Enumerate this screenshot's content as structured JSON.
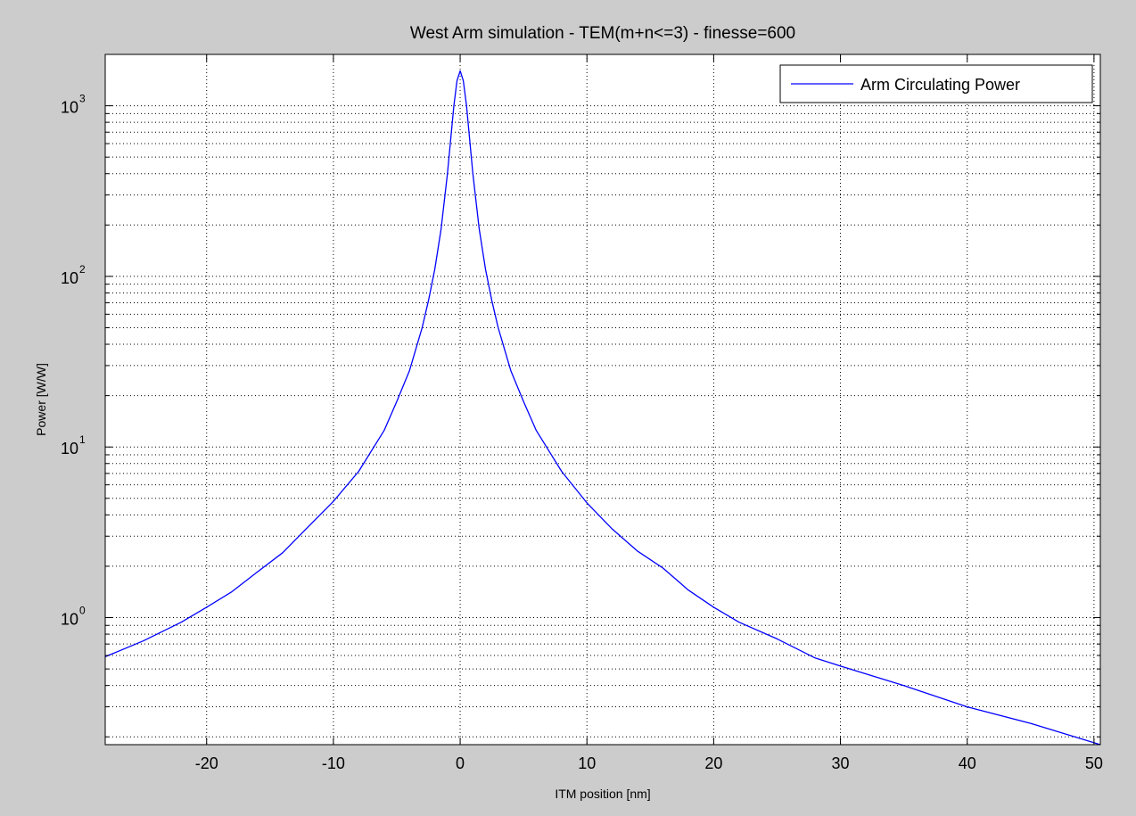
{
  "chart_data": {
    "type": "line",
    "title": "West Arm simulation - TEM(m+n<=3) - finesse=600",
    "xlabel": "ITM position [nm]",
    "ylabel": "Power [W/W]",
    "xlim": [
      -28,
      50.5
    ],
    "ylim": [
      0.18,
      2000
    ],
    "yscale": "log",
    "grid": true,
    "legend_position": "top-right",
    "x_ticks": [
      -20,
      -10,
      0,
      10,
      20,
      30,
      40,
      50
    ],
    "x_tick_labels": [
      "-20",
      "-10",
      "0",
      "10",
      "20",
      "30",
      "40",
      "50"
    ],
    "y_ticks": [
      1,
      10,
      100,
      1000
    ],
    "y_tick_labels": [
      {
        "base": "10",
        "exp": "0"
      },
      {
        "base": "10",
        "exp": "1"
      },
      {
        "base": "10",
        "exp": "2"
      },
      {
        "base": "10",
        "exp": "3"
      }
    ],
    "series": [
      {
        "name": "Arm Circulating Power",
        "color": "#0000ff",
        "x": [
          -28,
          -25,
          -22,
          -20,
          -18,
          -16,
          -14,
          -12,
          -10,
          -8,
          -6,
          -5,
          -4,
          -3,
          -2.5,
          -2,
          -1.5,
          -1,
          -0.5,
          -0.25,
          0,
          0.25,
          0.5,
          1,
          1.5,
          2,
          2.5,
          3,
          4,
          5,
          6,
          8,
          10,
          12,
          14,
          16,
          18,
          20,
          22,
          25,
          28,
          30,
          35,
          40,
          45,
          50.5
        ],
        "y": [
          0.59,
          0.73,
          0.94,
          1.15,
          1.42,
          1.85,
          2.4,
          3.4,
          4.8,
          7.2,
          12.5,
          18.5,
          28,
          50,
          72,
          110,
          190,
          400,
          1000,
          1400,
          1600,
          1400,
          1000,
          400,
          190,
          110,
          72,
          50,
          28,
          18.5,
          12.5,
          7.2,
          4.7,
          3.3,
          2.45,
          1.95,
          1.45,
          1.15,
          0.94,
          0.75,
          0.58,
          0.52,
          0.4,
          0.3,
          0.24,
          0.18
        ]
      }
    ]
  }
}
